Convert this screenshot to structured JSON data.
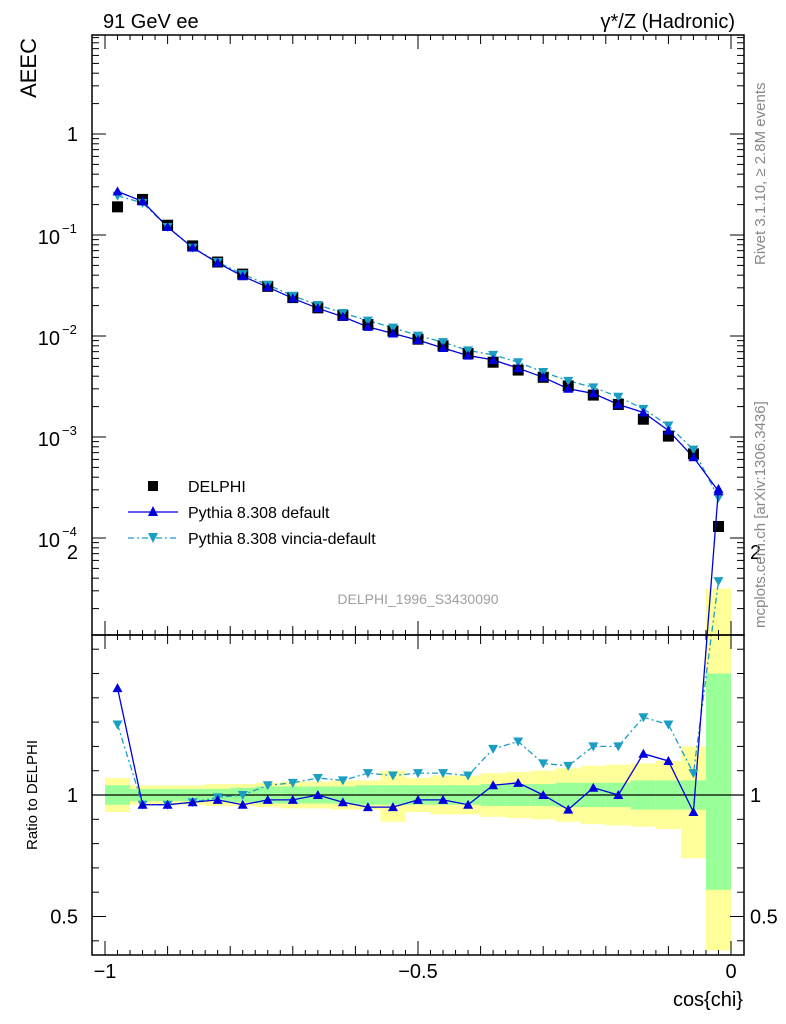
{
  "header": {
    "left": "91 GeV ee",
    "right": "γ*/Z (Hadronic)"
  },
  "side_labels": {
    "rivet": "Rivet 3.1.10, ≥ 2.8M events",
    "mcplots": "mcplots.cern.ch [arXiv:1306.3436]"
  },
  "watermark": "DELPHI_1996_S3430090",
  "colors": {
    "data": "#000000",
    "default": "#0000dd",
    "vincia": "#1a9ec4",
    "band_inner": "#99ff99",
    "band_outer": "#ffff99"
  },
  "chart_data": [
    {
      "type": "scatter",
      "ylabel": "AEEC",
      "yscale": "log",
      "ylim": [
        1e-05,
        10
      ],
      "xlim": [
        -1,
        0
      ],
      "y_tick_labels": [
        "1",
        "10^-1",
        "10^-2",
        "10^-3",
        "10^-4"
      ],
      "legend": {
        "position": "bottom-left",
        "entries": [
          "DELPHI",
          "Pythia 8.308 default",
          "Pythia 8.308 vincia-default"
        ]
      },
      "x": [
        -0.98,
        -0.94,
        -0.9,
        -0.86,
        -0.82,
        -0.78,
        -0.74,
        -0.7,
        -0.66,
        -0.62,
        -0.58,
        -0.54,
        -0.5,
        -0.46,
        -0.42,
        -0.38,
        -0.34,
        -0.3,
        -0.26,
        -0.22,
        -0.18,
        -0.14,
        -0.1,
        -0.06,
        -0.02
      ],
      "series": [
        {
          "name": "DELPHI",
          "marker": "square",
          "values": [
            0.19,
            0.225,
            0.125,
            0.078,
            0.054,
            0.041,
            0.031,
            0.024,
            0.019,
            0.016,
            0.013,
            0.0112,
            0.0093,
            0.008,
            0.0067,
            0.0055,
            0.0046,
            0.0039,
            0.0032,
            0.0026,
            0.0021,
            0.0015,
            0.00102,
            0.00068,
            0.00013
          ]
        },
        {
          "name": "Pythia 8.308 default",
          "marker": "triangle-up",
          "values": [
            0.27,
            0.215,
            0.12,
            0.075,
            0.053,
            0.039,
            0.0305,
            0.0236,
            0.0188,
            0.0155,
            0.0123,
            0.0106,
            0.0091,
            0.0076,
            0.0064,
            0.0058,
            0.0048,
            0.0039,
            0.003,
            0.0027,
            0.0021,
            0.00175,
            0.00116,
            0.00063,
            0.00029
          ]
        },
        {
          "name": "Pythia 8.308 vincia-default",
          "marker": "triangle-down",
          "values": [
            0.245,
            0.208,
            0.12,
            0.075,
            0.054,
            0.041,
            0.0321,
            0.025,
            0.0203,
            0.0169,
            0.0142,
            0.0121,
            0.0101,
            0.0087,
            0.0072,
            0.0065,
            0.0055,
            0.0044,
            0.0036,
            0.0031,
            0.0025,
            0.0019,
            0.0013,
            0.00075,
            0.00025
          ]
        }
      ]
    },
    {
      "type": "line",
      "xlabel": "cos{chi}",
      "ylabel": "Ratio to DELPHI",
      "ylim": [
        0.35,
        2.35
      ],
      "xlim": [
        -1,
        0
      ],
      "x_tick_labels": [
        "−1",
        "−0.5",
        "0"
      ],
      "y_tick_labels": [
        "0.5",
        "1",
        "2"
      ],
      "x": [
        -0.98,
        -0.94,
        -0.9,
        -0.86,
        -0.82,
        -0.78,
        -0.74,
        -0.7,
        -0.66,
        -0.62,
        -0.58,
        -0.54,
        -0.5,
        -0.46,
        -0.42,
        -0.38,
        -0.34,
        -0.3,
        -0.26,
        -0.22,
        -0.18,
        -0.14,
        -0.1,
        -0.06,
        -0.02
      ],
      "series": [
        {
          "name": "Pythia 8.308 default",
          "values": [
            1.44,
            0.96,
            0.96,
            0.97,
            0.98,
            0.96,
            0.98,
            0.98,
            1.0,
            0.97,
            0.95,
            0.95,
            0.98,
            0.98,
            0.96,
            1.04,
            1.05,
            1.0,
            0.94,
            1.03,
            1.0,
            1.17,
            1.14,
            0.93,
            2.26
          ]
        },
        {
          "name": "Pythia 8.308 vincia-default",
          "values": [
            1.29,
            0.96,
            0.96,
            0.97,
            0.99,
            1.0,
            1.04,
            1.05,
            1.07,
            1.06,
            1.09,
            1.08,
            1.09,
            1.09,
            1.08,
            1.19,
            1.22,
            1.13,
            1.12,
            1.2,
            1.2,
            1.32,
            1.29,
            1.09,
            1.88
          ]
        }
      ],
      "bands": {
        "edges": [
          -1,
          -0.96,
          -0.92,
          -0.88,
          -0.84,
          -0.8,
          -0.76,
          -0.72,
          -0.68,
          -0.64,
          -0.6,
          -0.56,
          -0.52,
          -0.48,
          -0.44,
          -0.4,
          -0.36,
          -0.32,
          -0.28,
          -0.24,
          -0.2,
          -0.16,
          -0.12,
          -0.08,
          -0.04,
          0
        ],
        "inner_low": [
          0.96,
          0.975,
          0.975,
          0.975,
          0.975,
          0.97,
          0.965,
          0.965,
          0.965,
          0.965,
          0.96,
          0.96,
          0.96,
          0.96,
          0.96,
          0.955,
          0.955,
          0.955,
          0.95,
          0.95,
          0.95,
          0.94,
          0.94,
          0.94,
          0.61
        ],
        "inner_high": [
          1.04,
          1.025,
          1.025,
          1.025,
          1.025,
          1.03,
          1.035,
          1.035,
          1.035,
          1.035,
          1.04,
          1.04,
          1.04,
          1.04,
          1.04,
          1.045,
          1.045,
          1.045,
          1.05,
          1.05,
          1.05,
          1.06,
          1.06,
          1.06,
          1.5
        ],
        "outer_low": [
          0.93,
          0.96,
          0.96,
          0.96,
          0.955,
          0.955,
          0.95,
          0.945,
          0.945,
          0.94,
          0.94,
          0.89,
          0.93,
          0.92,
          0.92,
          0.91,
          0.905,
          0.9,
          0.89,
          0.88,
          0.875,
          0.87,
          0.86,
          0.74,
          0.36
        ],
        "outer_high": [
          1.07,
          1.04,
          1.04,
          1.04,
          1.045,
          1.045,
          1.05,
          1.055,
          1.055,
          1.06,
          1.06,
          1.1,
          1.07,
          1.08,
          1.08,
          1.09,
          1.095,
          1.1,
          1.11,
          1.12,
          1.125,
          1.13,
          1.14,
          1.2,
          1.85
        ]
      }
    }
  ]
}
